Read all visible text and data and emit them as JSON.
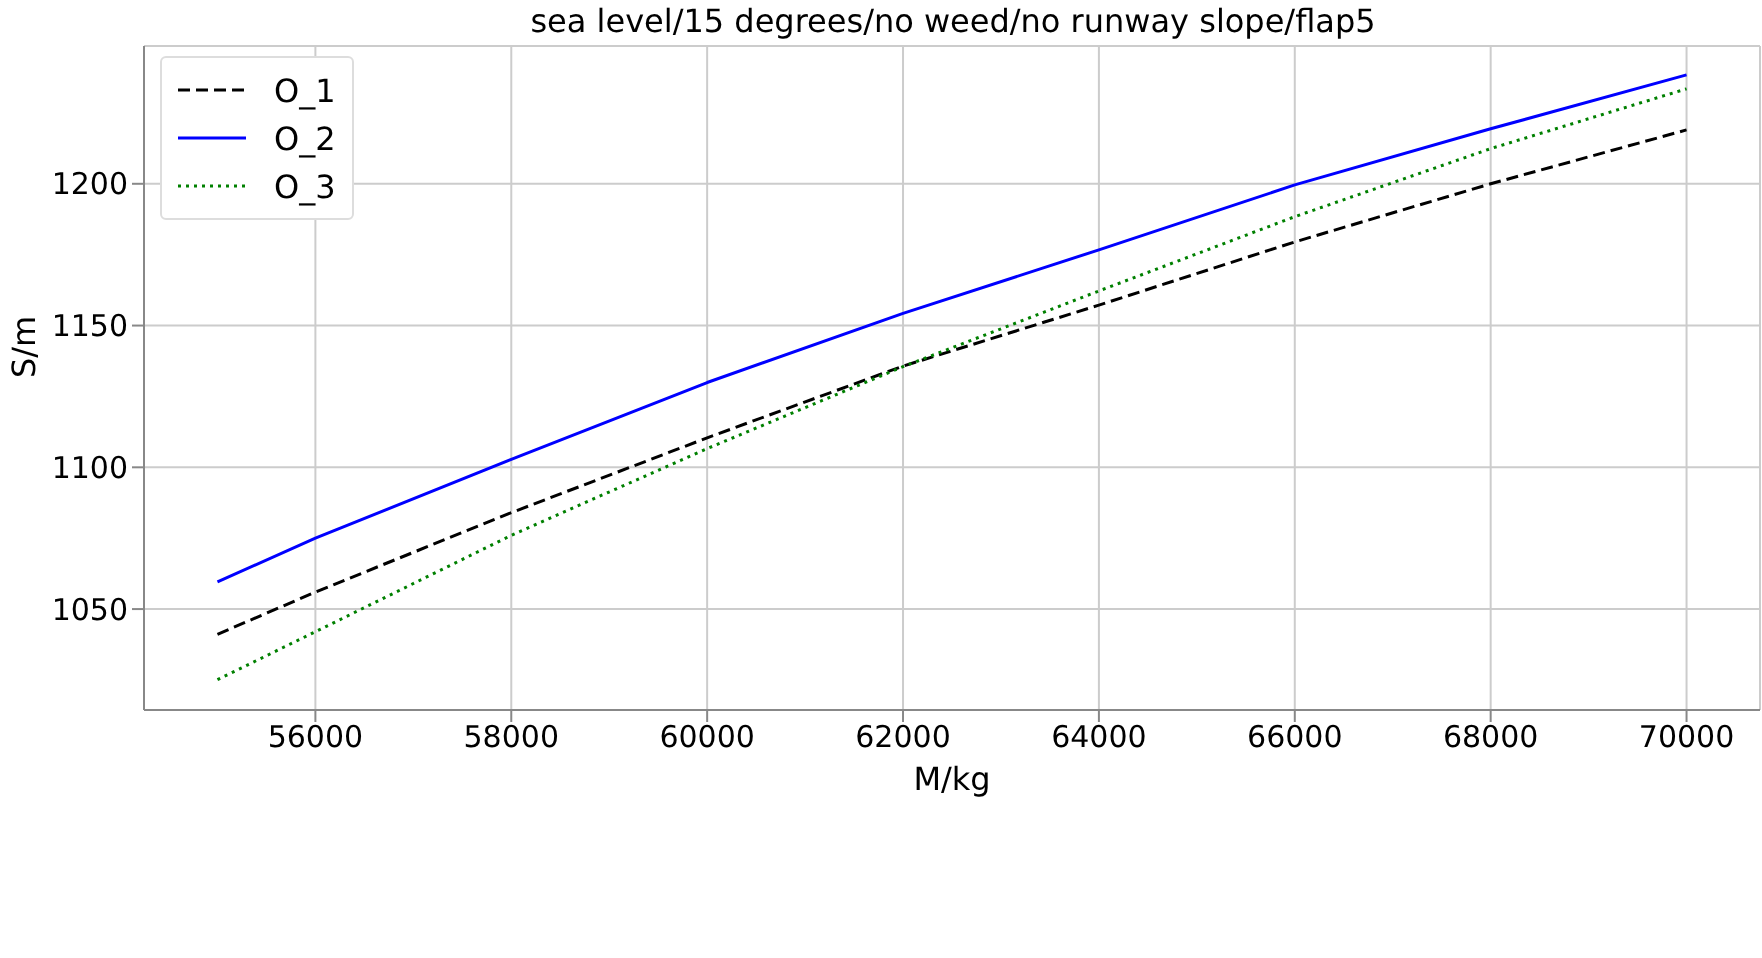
{
  "chart_data": {
    "type": "line",
    "title": "sea level/15 degrees/no weed/no runway slope/flap5",
    "xlabel": "M/kg",
    "ylabel": "S/m",
    "x": [
      55000,
      56000,
      58000,
      60000,
      62000,
      64000,
      66000,
      68000,
      70000
    ],
    "series": [
      {
        "name": "O_1",
        "color": "#000000",
        "line_style": "dashed",
        "values": [
          1041.1,
          1056,
          1084,
          1110.4,
          1135.7,
          1157.2,
          1179.5,
          1200,
          1219
        ]
      },
      {
        "name": "O_2",
        "color": "#0000ff",
        "line_style": "solid",
        "values": [
          1059.6,
          1075,
          1102.8,
          1129.9,
          1154.3,
          1176.7,
          1199.6,
          1219.4,
          1238.4
        ]
      },
      {
        "name": "O_3",
        "color": "#008000",
        "line_style": "dotted",
        "values": [
          1025.1,
          1042,
          1076,
          1106.6,
          1135.5,
          1162.2,
          1188.4,
          1212.4,
          1233.5
        ]
      }
    ],
    "xlim": [
      54250,
      70750
    ],
    "xticks": [
      56000,
      58000,
      60000,
      62000,
      64000,
      66000,
      68000,
      70000
    ],
    "ylim": [
      1014.4,
      1248.6
    ],
    "yticks": [
      1050,
      1100,
      1150,
      1200
    ],
    "grid": true,
    "legend": "top left",
    "marker": "none"
  }
}
